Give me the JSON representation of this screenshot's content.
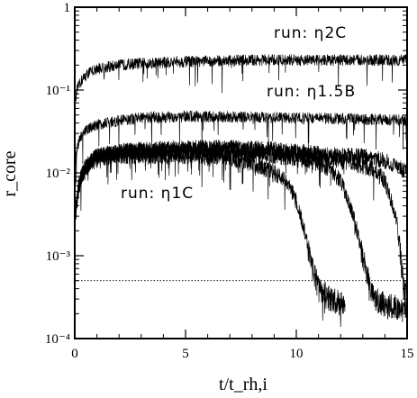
{
  "chart_data": {
    "type": "line",
    "xlabel": "t/t_rh,i",
    "ylabel": "r_core",
    "xlim": [
      0,
      15
    ],
    "ylim": [
      0.0001,
      1
    ],
    "yscale": "log",
    "grid": false,
    "x_ticks": [
      0,
      5,
      10,
      15
    ],
    "x_tick_labels": [
      "0",
      "5",
      "10",
      "15"
    ],
    "y_ticks": [
      0.0001,
      0.001,
      0.01,
      0.1,
      1
    ],
    "y_tick_labels": [
      "10⁻⁴",
      "10⁻³",
      "10⁻²",
      "10⁻¹",
      "1"
    ],
    "reference_line": {
      "y": 0.0005,
      "style": "dotted"
    },
    "annotations": [
      "run: η2C",
      "run: η1.5B",
      "run: η1C"
    ],
    "series": [
      {
        "x": [
          0,
          0.1,
          0.3,
          0.6,
          1,
          2,
          3,
          5,
          8,
          10,
          12,
          14,
          15
        ],
        "y": [
          0.06,
          0.1,
          0.13,
          0.16,
          0.18,
          0.2,
          0.21,
          0.22,
          0.23,
          0.23,
          0.23,
          0.23,
          0.23
        ]
      },
      {
        "x": [
          0,
          0.1,
          0.3,
          0.6,
          1,
          2,
          3,
          5,
          8,
          10,
          12,
          14,
          15
        ],
        "y": [
          0.012,
          0.02,
          0.028,
          0.034,
          0.038,
          0.043,
          0.046,
          0.048,
          0.047,
          0.046,
          0.045,
          0.044,
          0.043
        ]
      },
      {
        "x": [
          0,
          0.2,
          0.5,
          1,
          2,
          3,
          5,
          7,
          9,
          10,
          11,
          12,
          12.5,
          13,
          13.5,
          14,
          14.5,
          15
        ],
        "y": [
          0.003,
          0.008,
          0.012,
          0.016,
          0.018,
          0.019,
          0.02,
          0.02,
          0.019,
          0.018,
          0.017,
          0.016,
          0.016,
          0.016,
          0.015,
          0.014,
          0.012,
          0.01
        ]
      },
      {
        "x": [
          0,
          0.2,
          0.5,
          1,
          2,
          3,
          5,
          7,
          9,
          10,
          11,
          12,
          12.5,
          13,
          13.5,
          14,
          14.5,
          14.7,
          14.85,
          15
        ],
        "y": [
          0.003,
          0.008,
          0.012,
          0.016,
          0.018,
          0.019,
          0.019,
          0.019,
          0.018,
          0.017,
          0.016,
          0.014,
          0.013,
          0.012,
          0.011,
          0.008,
          0.003,
          0.001,
          0.0004,
          0.0003
        ]
      },
      {
        "x": [
          0,
          0.2,
          0.5,
          1,
          2,
          3,
          5,
          7,
          9,
          10,
          11,
          11.5,
          12,
          12.3,
          12.6,
          12.9,
          13.2,
          13.5,
          14,
          15
        ],
        "y": [
          0.003,
          0.008,
          0.012,
          0.016,
          0.017,
          0.018,
          0.018,
          0.017,
          0.016,
          0.015,
          0.013,
          0.011,
          0.008,
          0.005,
          0.003,
          0.0013,
          0.0006,
          0.0003,
          0.00025,
          0.00022
        ]
      },
      {
        "x": [
          0,
          0.2,
          0.5,
          1,
          2,
          3,
          5,
          7,
          8,
          9,
          9.5,
          9.8,
          10,
          10.2,
          10.4,
          10.6,
          10.8,
          11,
          11.5,
          12.2
        ],
        "y": [
          0.003,
          0.007,
          0.011,
          0.015,
          0.016,
          0.016,
          0.016,
          0.015,
          0.013,
          0.01,
          0.008,
          0.006,
          0.0045,
          0.003,
          0.0018,
          0.001,
          0.0006,
          0.0004,
          0.0003,
          0.00025
        ]
      }
    ]
  }
}
